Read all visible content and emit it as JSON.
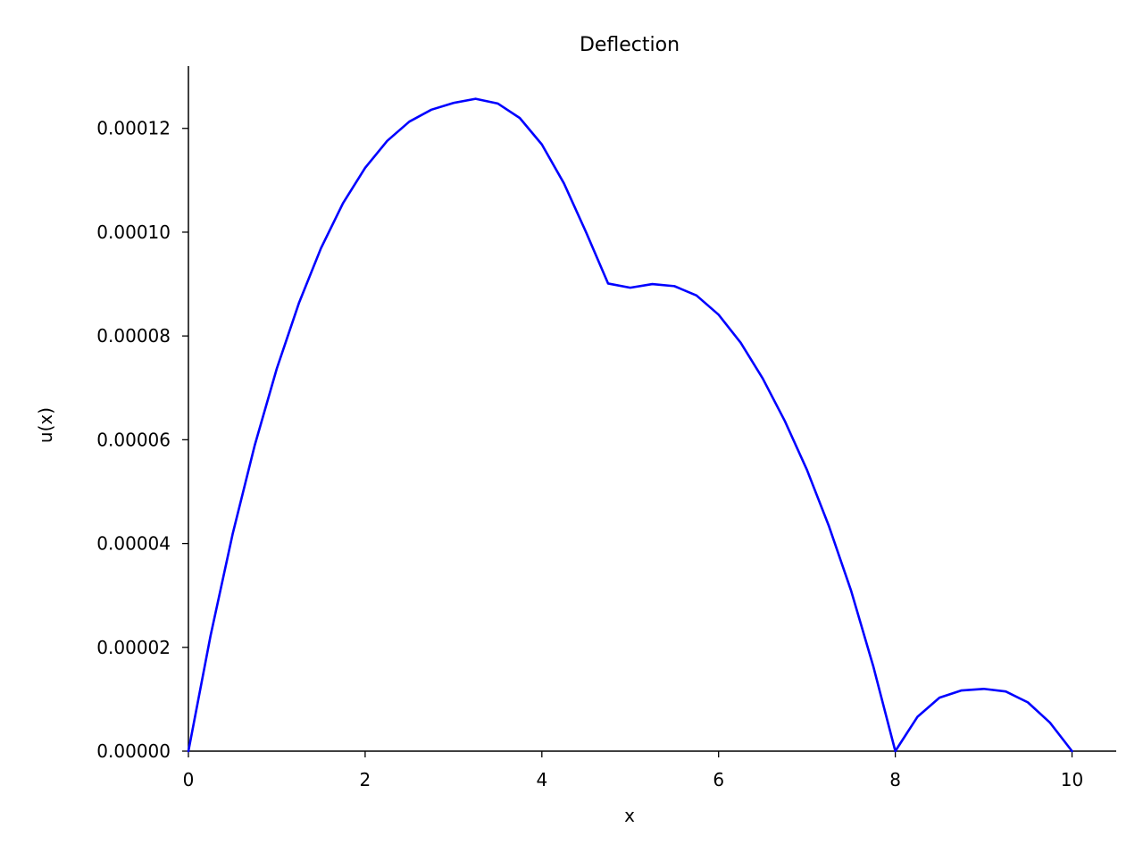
{
  "chart_data": {
    "type": "line",
    "title": "Deflection",
    "xlabel": "x",
    "ylabel": "u(x)",
    "xlim": [
      0,
      10.5
    ],
    "ylim": [
      0,
      0.000132
    ],
    "x_ticks": [
      0,
      2,
      4,
      6,
      8,
      10
    ],
    "x_tick_labels": [
      "0",
      "2",
      "4",
      "6",
      "8",
      "10"
    ],
    "y_ticks": [
      0,
      2e-05,
      4e-05,
      6e-05,
      8e-05,
      0.0001,
      0.00012
    ],
    "y_tick_labels": [
      "0.00000",
      "0.00002",
      "0.00004",
      "0.00006",
      "0.00008",
      "0.00010",
      "0.00012"
    ],
    "grid": false,
    "series": [
      {
        "color": "#0000ff",
        "x": [
          0,
          0.25,
          0.5,
          0.75,
          1,
          1.25,
          1.5,
          1.75,
          2,
          2.25,
          2.5,
          2.75,
          3,
          3.25,
          3.5,
          3.75,
          4,
          4.25,
          4.5,
          4.75,
          5,
          5.25,
          5.5,
          5.75,
          6,
          6.25,
          6.5,
          6.75,
          7,
          7.25,
          7.5,
          7.75,
          8,
          8.25,
          8.5,
          8.75,
          9,
          9.25,
          9.5,
          9.75,
          10
        ],
        "y": [
          0,
          2.22e-05,
          4.18e-05,
          5.89e-05,
          7.37e-05,
          8.63e-05,
          9.69e-05,
          0.0001056,
          0.0001124,
          0.0001176,
          0.0001213,
          0.0001236,
          0.0001249,
          0.0001257,
          0.0001248,
          0.000122,
          0.0001169,
          0.0001094,
          0.0001,
          9.01e-05,
          8.93e-05,
          9e-05,
          8.96e-05,
          8.78e-05,
          8.41e-05,
          7.87e-05,
          7.18e-05,
          6.36e-05,
          5.42e-05,
          4.33e-05,
          3.09e-05,
          1.64e-05,
          0,
          6.6e-06,
          1.03e-05,
          1.17e-05,
          1.2e-05,
          1.15e-05,
          9.4e-06,
          5.5e-06,
          0
        ]
      }
    ]
  }
}
